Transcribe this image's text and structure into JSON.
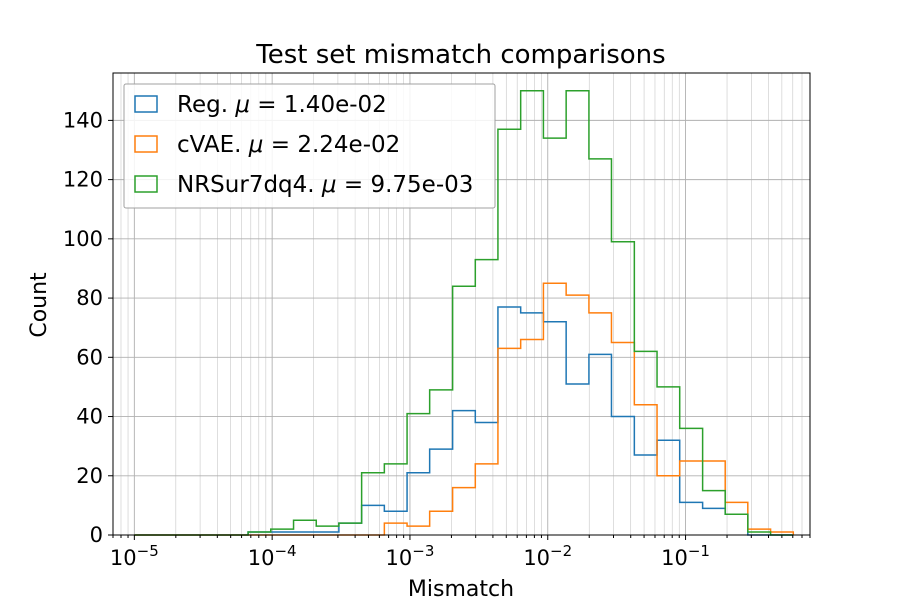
{
  "chart_data": {
    "type": "histogram",
    "title": "Test set mismatch comparisons",
    "xlabel": "Mismatch",
    "ylabel": "Count",
    "xscale": "log",
    "xlim": [
      7e-06,
      0.8
    ],
    "ylim": [
      0,
      156
    ],
    "grid": true,
    "grid_minor_x": true,
    "legend_position": "top-left",
    "x_tick_labels": [
      {
        "base": "10",
        "exp": "−5",
        "value": 1e-05
      },
      {
        "base": "10",
        "exp": "−4",
        "value": 0.0001
      },
      {
        "base": "10",
        "exp": "−3",
        "value": 0.001
      },
      {
        "base": "10",
        "exp": "−2",
        "value": 0.01
      },
      {
        "base": "10",
        "exp": "−1",
        "value": 0.1
      }
    ],
    "y_ticks": [
      "0",
      "20",
      "40",
      "60",
      "80",
      "100",
      "120",
      "140"
    ],
    "bin_edges": [
      1e-05,
      1.46e-05,
      2.14e-05,
      3.13e-05,
      4.57e-05,
      6.69e-05,
      9.77e-05,
      0.000143,
      0.000209,
      0.000305,
      0.000446,
      0.000652,
      0.000953,
      0.00139,
      0.00204,
      0.00298,
      0.00435,
      0.00636,
      0.0093,
      0.0136,
      0.0199,
      0.029,
      0.0425,
      0.0621,
      0.0907,
      0.133,
      0.194,
      0.283,
      0.414,
      0.605
    ],
    "series": [
      {
        "name": "Reg.",
        "mu": "1.40e-02",
        "color": "#1f77b4",
        "counts": [
          0,
          0,
          0,
          0,
          0,
          1,
          1,
          1,
          1,
          4,
          10,
          8,
          21,
          29,
          42,
          38,
          77,
          75,
          72,
          51,
          61,
          40,
          27,
          32,
          11,
          9,
          7,
          0,
          0
        ]
      },
      {
        "name": "cVAE.",
        "mu": "2.24e-02",
        "color": "#ff7f0e",
        "counts": [
          0,
          0,
          0,
          0,
          0,
          0,
          0,
          0,
          0,
          0,
          0,
          4,
          3,
          8,
          16,
          24,
          63,
          66,
          85,
          81,
          75,
          65,
          44,
          20,
          25,
          25,
          11,
          2,
          1
        ]
      },
      {
        "name": "NRSur7dq4.",
        "mu": "9.75e-03",
        "color": "#2ca02c",
        "counts": [
          0,
          0,
          0,
          0,
          0,
          1,
          2,
          5,
          3,
          4,
          21,
          24,
          41,
          49,
          84,
          93,
          137,
          150,
          134,
          150,
          127,
          99,
          62,
          50,
          36,
          15,
          7,
          1,
          0
        ]
      }
    ]
  }
}
